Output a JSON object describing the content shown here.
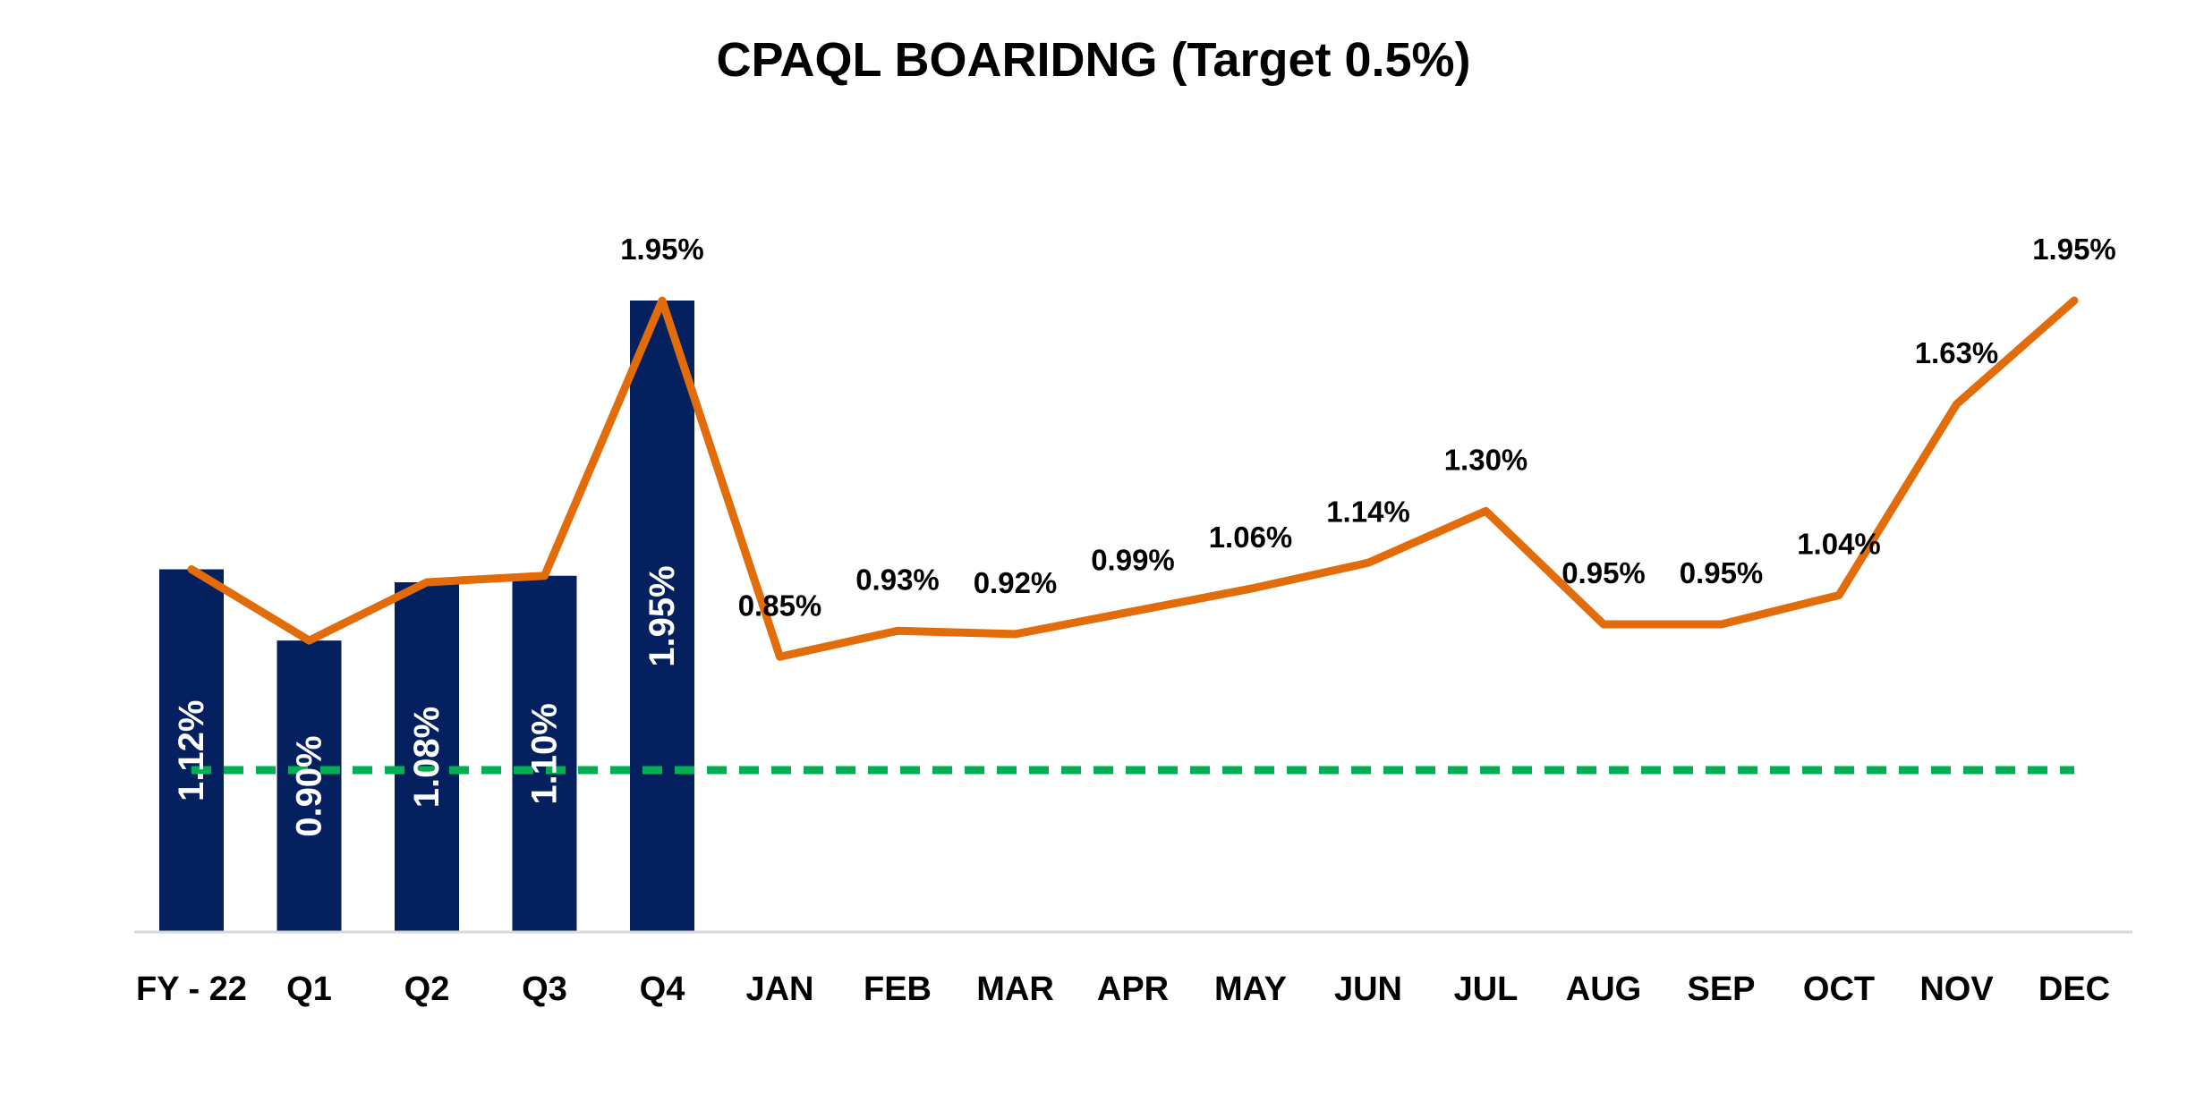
{
  "chart_data": {
    "type": "bar",
    "title": "CPAQL BOARIDNG (Target 0.5%)",
    "categories": [
      "FY - 22",
      "Q1",
      "Q2",
      "Q3",
      "Q4",
      "JAN",
      "FEB",
      "MAR",
      "APR",
      "MAY",
      "JUN",
      "JUL",
      "AUG",
      "SEP",
      "OCT",
      "NOV",
      "DEC"
    ],
    "series": [
      {
        "type": "bar",
        "values": [
          1.12,
          0.9,
          1.08,
          1.1,
          1.95,
          null,
          null,
          null,
          null,
          null,
          null,
          null,
          null,
          null,
          null,
          null,
          null
        ],
        "labels": [
          "1.12%",
          "0.90%",
          "1.08%",
          "1.10%",
          "1.95%",
          null,
          null,
          null,
          null,
          null,
          null,
          null,
          null,
          null,
          null,
          null,
          null
        ],
        "color": "#04205f"
      },
      {
        "type": "line",
        "values": [
          1.12,
          0.9,
          1.08,
          1.1,
          1.95,
          0.85,
          0.93,
          0.92,
          0.99,
          1.06,
          1.14,
          1.3,
          0.95,
          0.95,
          1.04,
          1.63,
          1.95
        ],
        "labels": [
          null,
          null,
          null,
          null,
          "1.95%",
          "0.85%",
          "0.93%",
          "0.92%",
          "0.99%",
          "1.06%",
          "1.14%",
          "1.30%",
          "0.95%",
          "0.95%",
          "1.04%",
          "1.63%",
          "1.95%"
        ],
        "color": "#e36c0a"
      },
      {
        "type": "line",
        "style": "dashed",
        "values": [
          0.5,
          0.5,
          0.5,
          0.5,
          0.5,
          0.5,
          0.5,
          0.5,
          0.5,
          0.5,
          0.5,
          0.5,
          0.5,
          0.5,
          0.5,
          0.5,
          0.5
        ],
        "color": "#00b050"
      }
    ],
    "ylim": [
      0,
      2.4
    ],
    "grid": false,
    "xlabel": "",
    "ylabel": ""
  }
}
